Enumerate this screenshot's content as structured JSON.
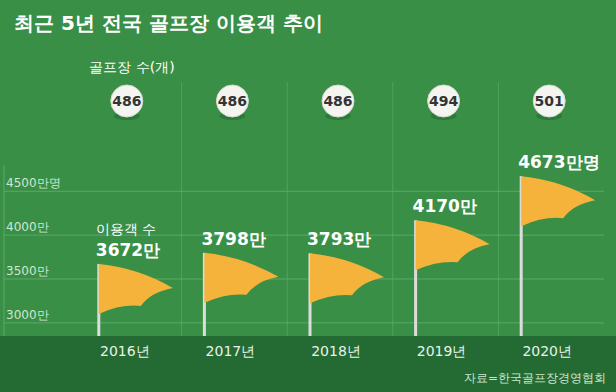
{
  "chart_data": {
    "type": "bar",
    "title": "최근 5년 전국 골프장 이용객 추이",
    "categories": [
      "2016년",
      "2017년",
      "2018년",
      "2019년",
      "2020년"
    ],
    "values": [
      3672,
      3798,
      3793,
      4170,
      4673
    ],
    "value_labels": [
      "3672만",
      "3798만",
      "3793만",
      "4170만",
      "4673만명"
    ],
    "data_labels": true,
    "color": "#f6b33c",
    "annotation": "이용객 수",
    "golf_courses": {
      "label": "골프장 수(개)",
      "values": [
        486,
        486,
        486,
        494,
        501
      ]
    },
    "ylim": [
      2850,
      4800
    ],
    "yticks": [
      {
        "value": 3000,
        "label": "3000만"
      },
      {
        "value": 3500,
        "label": "3500만"
      },
      {
        "value": 4000,
        "label": "4000만"
      },
      {
        "value": 4500,
        "label": "4500만명"
      }
    ],
    "grid": true,
    "source": "자료=한국골프장경영협회"
  }
}
